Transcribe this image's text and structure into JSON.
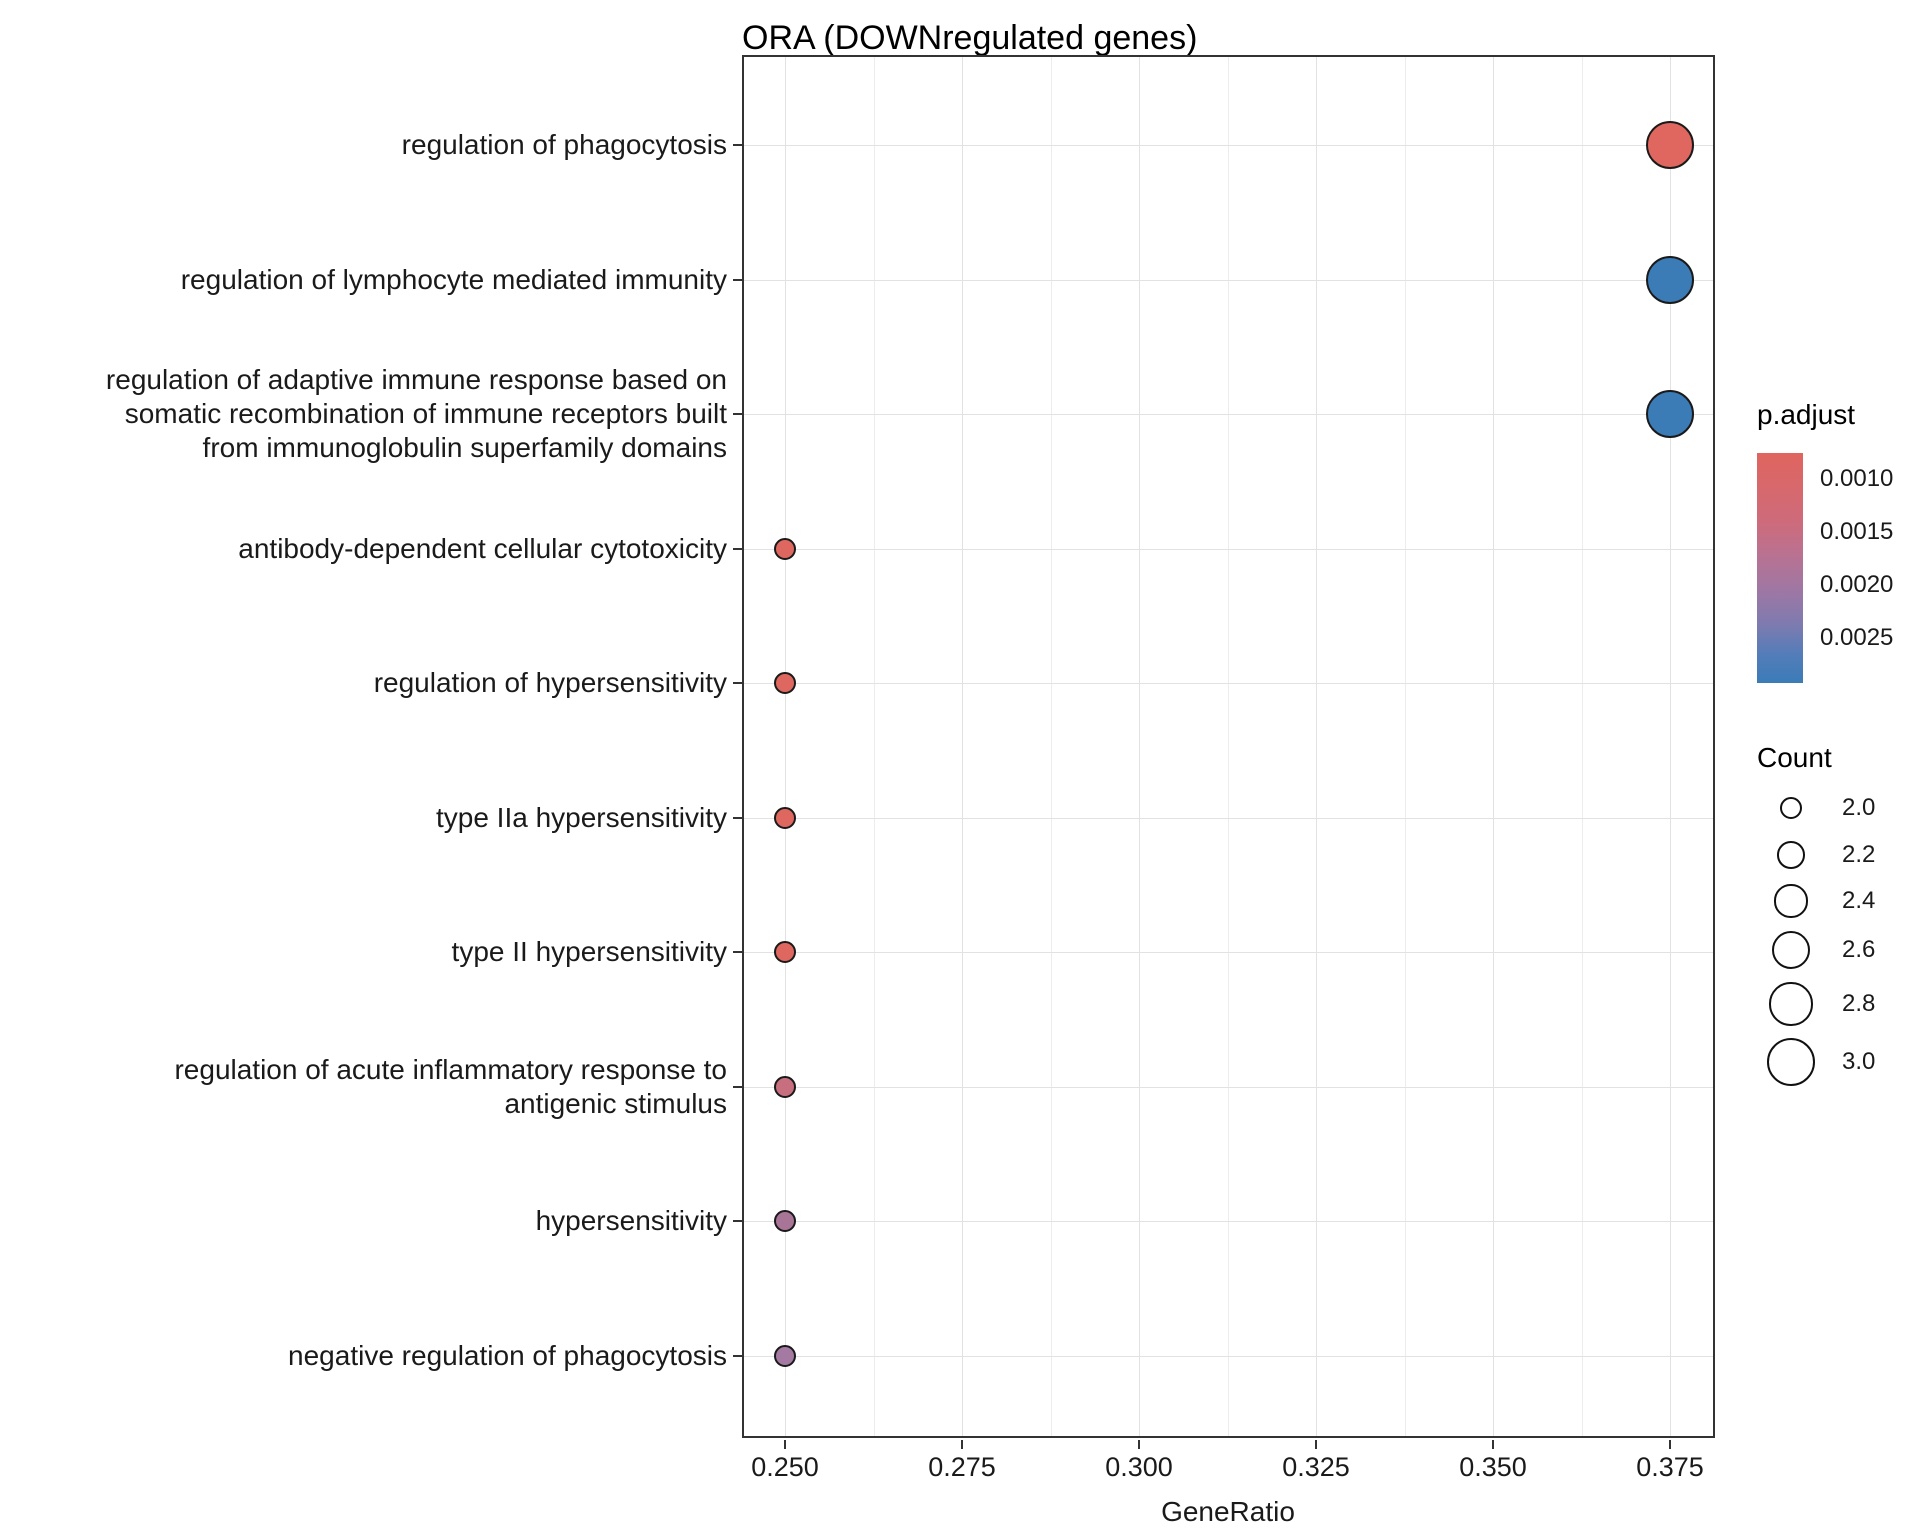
{
  "title": "ORA (DOWNregulated genes)",
  "chart_data": {
    "type": "scatter",
    "subtype": "enrichment-dotplot",
    "title": "ORA (DOWNregulated genes)",
    "xlabel": "GeneRatio",
    "ylabel": "",
    "grid": "on",
    "x_ticks": [
      {
        "value": 0.25,
        "label": "0.250"
      },
      {
        "value": 0.275,
        "label": "0.275"
      },
      {
        "value": 0.3,
        "label": "0.300"
      },
      {
        "value": 0.325,
        "label": "0.325"
      },
      {
        "value": 0.35,
        "label": "0.350"
      },
      {
        "value": 0.375,
        "label": "0.375"
      }
    ],
    "xlim": [
      0.2439,
      0.3814
    ],
    "categories": [
      {
        "lines": [
          "regulation of phagocytosis"
        ]
      },
      {
        "lines": [
          "regulation of lymphocyte mediated immunity"
        ]
      },
      {
        "lines": [
          "regulation of adaptive immune response based on",
          "somatic recombination of immune receptors built",
          "from immunoglobulin superfamily domains"
        ]
      },
      {
        "lines": [
          "antibody-dependent cellular cytotoxicity"
        ]
      },
      {
        "lines": [
          "regulation of hypersensitivity"
        ]
      },
      {
        "lines": [
          "type IIa hypersensitivity"
        ]
      },
      {
        "lines": [
          "type II hypersensitivity"
        ]
      },
      {
        "lines": [
          "regulation of acute inflammatory response to",
          "antigenic stimulus"
        ]
      },
      {
        "lines": [
          "hypersensitivity"
        ]
      },
      {
        "lines": [
          "negative regulation of phagocytosis"
        ]
      }
    ],
    "points": [
      {
        "category": "regulation of phagocytosis",
        "gene_ratio": 0.375,
        "count": 3,
        "color": "#df675f"
      },
      {
        "category": "regulation of lymphocyte mediated immunity",
        "gene_ratio": 0.375,
        "count": 3,
        "color": "#3b7bb6"
      },
      {
        "category": "regulation of adaptive immune response based on somatic recombination of immune receptors built from immunoglobulin superfamily domains",
        "gene_ratio": 0.375,
        "count": 3,
        "color": "#3b7bb6"
      },
      {
        "category": "antibody-dependent cellular cytotoxicity",
        "gene_ratio": 0.25,
        "count": 2,
        "color": "#de675f"
      },
      {
        "category": "regulation of hypersensitivity",
        "gene_ratio": 0.25,
        "count": 2,
        "color": "#de675f"
      },
      {
        "category": "type IIa hypersensitivity",
        "gene_ratio": 0.25,
        "count": 2,
        "color": "#de675f"
      },
      {
        "category": "type II hypersensitivity",
        "gene_ratio": 0.25,
        "count": 2,
        "color": "#de675f"
      },
      {
        "category": "regulation of acute inflammatory response to antigenic stimulus",
        "gene_ratio": 0.25,
        "count": 2,
        "color": "#c76f7e"
      },
      {
        "category": "hypersensitivity",
        "gene_ratio": 0.25,
        "count": 2,
        "color": "#a97597"
      },
      {
        "category": "negative regulation of phagocytosis",
        "gene_ratio": 0.25,
        "count": 2,
        "color": "#a57aa2"
      }
    ],
    "legend_p_adjust": {
      "title": "p.adjust",
      "ticks": [
        {
          "value": 0.001,
          "label": "0.0010"
        },
        {
          "value": 0.0015,
          "label": "0.0015"
        },
        {
          "value": 0.002,
          "label": "0.0020"
        },
        {
          "value": 0.0025,
          "label": "0.0025"
        }
      ],
      "scale_domain": [
        0.00075,
        0.00293
      ],
      "gradient_stops": [
        {
          "pos": 0.0,
          "color": "#e0655e"
        },
        {
          "pos": 0.3,
          "color": "#ce6b7b"
        },
        {
          "pos": 0.45,
          "color": "#b87292"
        },
        {
          "pos": 0.6,
          "color": "#9e77a4"
        },
        {
          "pos": 0.75,
          "color": "#7c7bb0"
        },
        {
          "pos": 0.88,
          "color": "#527db9"
        },
        {
          "pos": 1.0,
          "color": "#3b7cb7"
        }
      ]
    },
    "legend_count": {
      "title": "Count",
      "items": [
        {
          "label": "2.0",
          "value": 2.0
        },
        {
          "label": "2.2",
          "value": 2.2
        },
        {
          "label": "2.4",
          "value": 2.4
        },
        {
          "label": "2.6",
          "value": 2.6
        },
        {
          "label": "2.8",
          "value": 2.8
        },
        {
          "label": "3.0",
          "value": 3.0
        }
      ]
    }
  }
}
